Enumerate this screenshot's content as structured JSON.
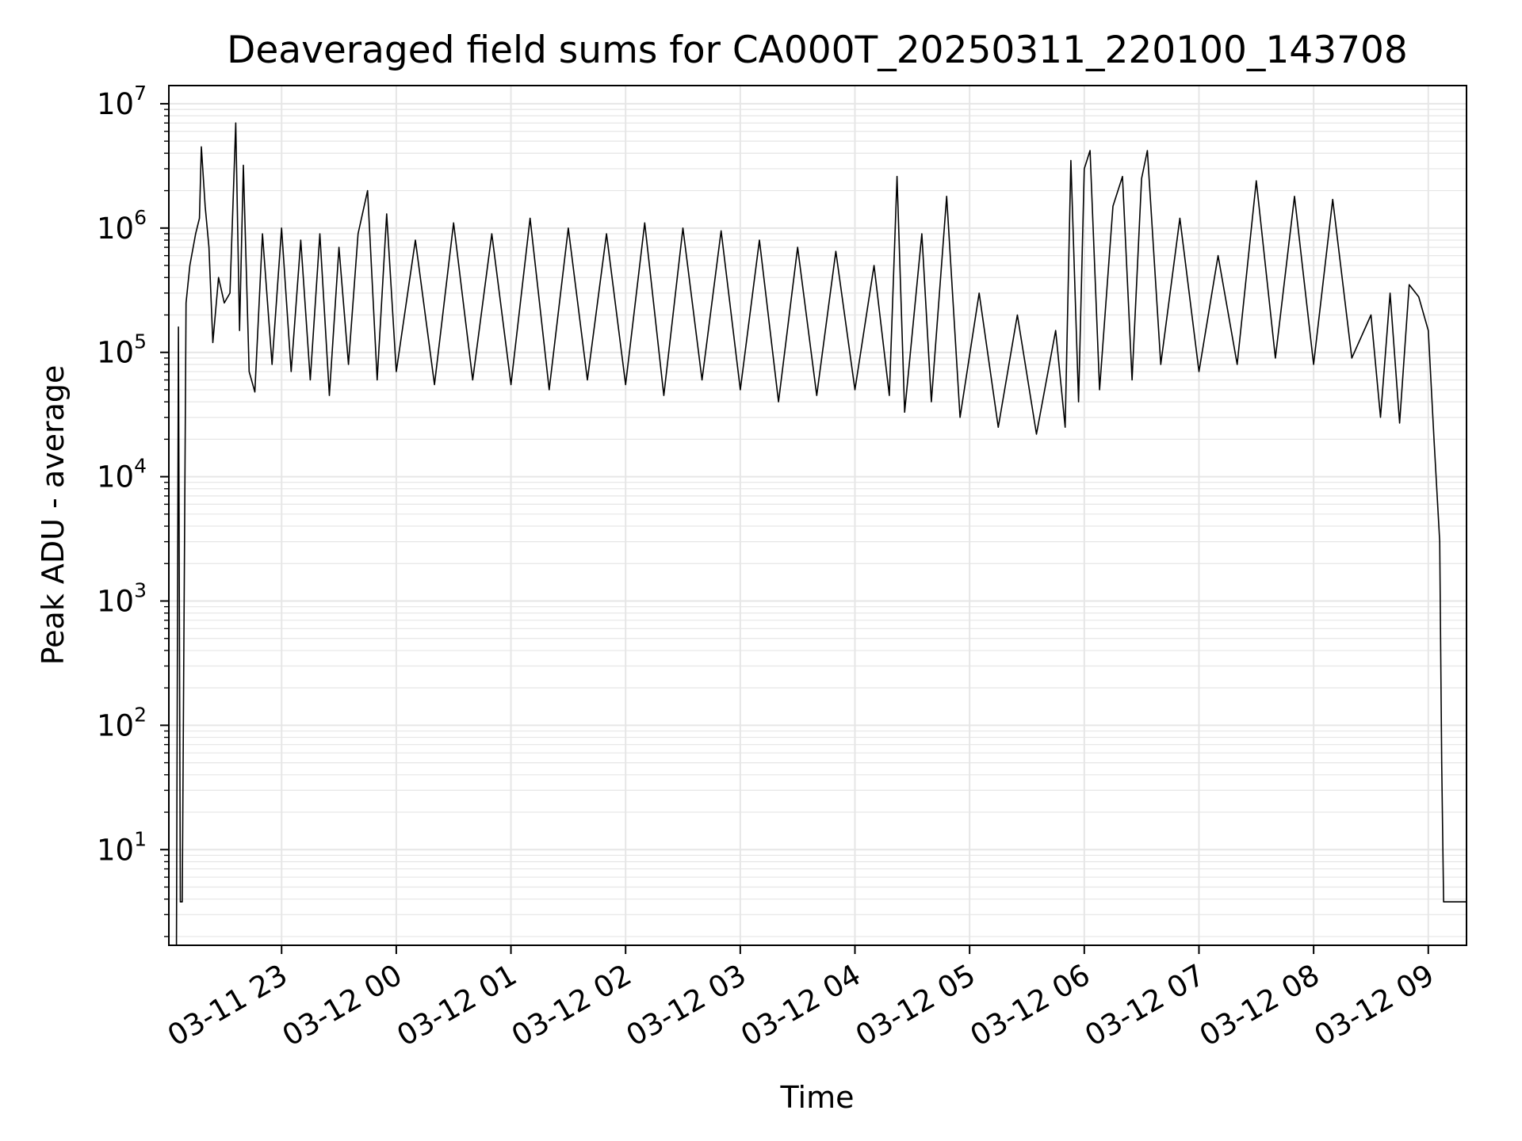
{
  "chart_data": {
    "type": "line",
    "title": "Deaveraged field sums for CA000T_20250311_220100_143708",
    "xlabel": "Time",
    "ylabel": "Peak ADU - average",
    "y_scale": "log",
    "ylim": [
      1.7,
      14000000
    ],
    "xlim": [
      "2025-03-11 22:01",
      "2025-03-12 09:20"
    ],
    "x_ticks": [
      "03-11 23",
      "03-12 00",
      "03-12 01",
      "03-12 02",
      "03-12 03",
      "03-12 04",
      "03-12 05",
      "03-12 06",
      "03-12 07",
      "03-12 08",
      "03-12 09"
    ],
    "x_tick_times": [
      "2025-03-11 23:00",
      "2025-03-12 00:00",
      "2025-03-12 01:00",
      "2025-03-12 02:00",
      "2025-03-12 03:00",
      "2025-03-12 04:00",
      "2025-03-12 05:00",
      "2025-03-12 06:00",
      "2025-03-12 07:00",
      "2025-03-12 08:00",
      "2025-03-12 09:00"
    ],
    "y_ticks": [
      {
        "base": "10",
        "exp": "1",
        "value": 10
      },
      {
        "base": "10",
        "exp": "2",
        "value": 100
      },
      {
        "base": "10",
        "exp": "3",
        "value": 1000
      },
      {
        "base": "10",
        "exp": "4",
        "value": 10000
      },
      {
        "base": "10",
        "exp": "5",
        "value": 100000
      },
      {
        "base": "10",
        "exp": "6",
        "value": 1000000
      },
      {
        "base": "10",
        "exp": "7",
        "value": 10000000
      }
    ],
    "grid": true,
    "line_color": "#000000",
    "grid_color": "#e6e6e6",
    "series": [
      {
        "points": [
          [
            "2025-03-11 22:05",
            1.7
          ],
          [
            "2025-03-11 22:06",
            160000
          ],
          [
            "2025-03-11 22:07",
            3.8
          ],
          [
            "2025-03-11 22:08",
            3.8
          ],
          [
            "2025-03-11 22:10",
            250000
          ],
          [
            "2025-03-11 22:12",
            500000
          ],
          [
            "2025-03-11 22:15",
            900000
          ],
          [
            "2025-03-11 22:17",
            1200000
          ],
          [
            "2025-03-11 22:18",
            4500000
          ],
          [
            "2025-03-11 22:20",
            1500000
          ],
          [
            "2025-03-11 22:22",
            700000
          ],
          [
            "2025-03-11 22:24",
            120000
          ],
          [
            "2025-03-11 22:27",
            400000
          ],
          [
            "2025-03-11 22:30",
            250000
          ],
          [
            "2025-03-11 22:33",
            300000
          ],
          [
            "2025-03-11 22:36",
            7000000
          ],
          [
            "2025-03-11 22:38",
            150000
          ],
          [
            "2025-03-11 22:40",
            3200000
          ],
          [
            "2025-03-11 22:43",
            70000
          ],
          [
            "2025-03-11 22:46",
            48000
          ],
          [
            "2025-03-11 22:50",
            900000
          ],
          [
            "2025-03-11 22:55",
            80000
          ],
          [
            "2025-03-11 23:00",
            1000000
          ],
          [
            "2025-03-11 23:05",
            70000
          ],
          [
            "2025-03-11 23:10",
            800000
          ],
          [
            "2025-03-11 23:15",
            60000
          ],
          [
            "2025-03-11 23:20",
            900000
          ],
          [
            "2025-03-11 23:25",
            45000
          ],
          [
            "2025-03-11 23:30",
            700000
          ],
          [
            "2025-03-11 23:35",
            80000
          ],
          [
            "2025-03-11 23:40",
            900000
          ],
          [
            "2025-03-11 23:45",
            2000000
          ],
          [
            "2025-03-11 23:50",
            60000
          ],
          [
            "2025-03-11 23:55",
            1300000
          ],
          [
            "2025-03-12 00:00",
            70000
          ],
          [
            "2025-03-12 00:10",
            800000
          ],
          [
            "2025-03-12 00:20",
            55000
          ],
          [
            "2025-03-12 00:30",
            1100000
          ],
          [
            "2025-03-12 00:40",
            60000
          ],
          [
            "2025-03-12 00:50",
            900000
          ],
          [
            "2025-03-12 01:00",
            55000
          ],
          [
            "2025-03-12 01:10",
            1200000
          ],
          [
            "2025-03-12 01:20",
            50000
          ],
          [
            "2025-03-12 01:30",
            1000000
          ],
          [
            "2025-03-12 01:40",
            60000
          ],
          [
            "2025-03-12 01:50",
            900000
          ],
          [
            "2025-03-12 02:00",
            55000
          ],
          [
            "2025-03-12 02:10",
            1100000
          ],
          [
            "2025-03-12 02:20",
            45000
          ],
          [
            "2025-03-12 02:30",
            1000000
          ],
          [
            "2025-03-12 02:40",
            60000
          ],
          [
            "2025-03-12 02:50",
            950000
          ],
          [
            "2025-03-12 03:00",
            50000
          ],
          [
            "2025-03-12 03:10",
            800000
          ],
          [
            "2025-03-12 03:20",
            40000
          ],
          [
            "2025-03-12 03:30",
            700000
          ],
          [
            "2025-03-12 03:40",
            45000
          ],
          [
            "2025-03-12 03:50",
            650000
          ],
          [
            "2025-03-12 04:00",
            50000
          ],
          [
            "2025-03-12 04:10",
            500000
          ],
          [
            "2025-03-12 04:18",
            45000
          ],
          [
            "2025-03-12 04:22",
            2600000
          ],
          [
            "2025-03-12 04:26",
            33000
          ],
          [
            "2025-03-12 04:35",
            900000
          ],
          [
            "2025-03-12 04:40",
            40000
          ],
          [
            "2025-03-12 04:48",
            1800000
          ],
          [
            "2025-03-12 04:55",
            30000
          ],
          [
            "2025-03-12 05:05",
            300000
          ],
          [
            "2025-03-12 05:15",
            25000
          ],
          [
            "2025-03-12 05:25",
            200000
          ],
          [
            "2025-03-12 05:35",
            22000
          ],
          [
            "2025-03-12 05:45",
            150000
          ],
          [
            "2025-03-12 05:50",
            25000
          ],
          [
            "2025-03-12 05:53",
            3500000
          ],
          [
            "2025-03-12 05:57",
            40000
          ],
          [
            "2025-03-12 06:00",
            3000000
          ],
          [
            "2025-03-12 06:03",
            4200000
          ],
          [
            "2025-03-12 06:08",
            50000
          ],
          [
            "2025-03-12 06:15",
            1500000
          ],
          [
            "2025-03-12 06:20",
            2600000
          ],
          [
            "2025-03-12 06:25",
            60000
          ],
          [
            "2025-03-12 06:30",
            2500000
          ],
          [
            "2025-03-12 06:33",
            4200000
          ],
          [
            "2025-03-12 06:40",
            80000
          ],
          [
            "2025-03-12 06:50",
            1200000
          ],
          [
            "2025-03-12 07:00",
            70000
          ],
          [
            "2025-03-12 07:10",
            600000
          ],
          [
            "2025-03-12 07:20",
            80000
          ],
          [
            "2025-03-12 07:30",
            2400000
          ],
          [
            "2025-03-12 07:40",
            90000
          ],
          [
            "2025-03-12 07:50",
            1800000
          ],
          [
            "2025-03-12 08:00",
            80000
          ],
          [
            "2025-03-12 08:10",
            1700000
          ],
          [
            "2025-03-12 08:20",
            90000
          ],
          [
            "2025-03-12 08:30",
            200000
          ],
          [
            "2025-03-12 08:35",
            30000
          ],
          [
            "2025-03-12 08:40",
            300000
          ],
          [
            "2025-03-12 08:45",
            27000
          ],
          [
            "2025-03-12 08:50",
            350000
          ],
          [
            "2025-03-12 08:55",
            280000
          ],
          [
            "2025-03-12 09:00",
            150000
          ],
          [
            "2025-03-12 09:03",
            20000
          ],
          [
            "2025-03-12 09:06",
            3000
          ],
          [
            "2025-03-12 09:07",
            50
          ],
          [
            "2025-03-12 09:08",
            3.8
          ],
          [
            "2025-03-12 09:20",
            3.8
          ]
        ]
      }
    ]
  }
}
